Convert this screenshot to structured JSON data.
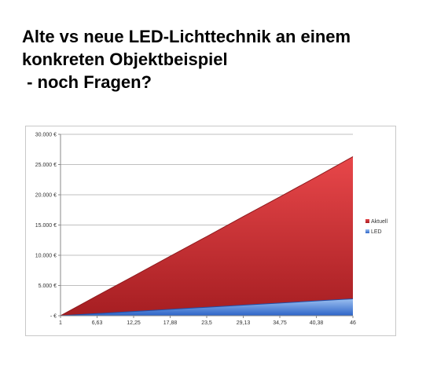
{
  "slide": {
    "title": "Alte vs neue LED-Lichttechnik an einem\nkonkreten Objektbeispiel\n - noch Fragen?"
  },
  "chart_data": {
    "type": "area",
    "x": [
      1,
      6.63,
      12.25,
      17.88,
      23.5,
      29.13,
      34.75,
      40.38,
      46
    ],
    "x_tick_labels": [
      "1",
      "6,63",
      "12,25",
      "17,88",
      "23,5",
      "29,13",
      "34,75",
      "40,38",
      "46"
    ],
    "y_tick_labels": [
      "-  €",
      "5.000 €",
      "10.000 €",
      "15.000 €",
      "20.000 €",
      "25.000 €",
      "30.000 €"
    ],
    "y_ticks": [
      0,
      5000,
      10000,
      15000,
      20000,
      25000,
      30000
    ],
    "ylim": [
      0,
      30000
    ],
    "xlim": [
      1,
      46
    ],
    "series": [
      {
        "name": "Aktuell",
        "color": "#c0392b",
        "values": [
          0,
          3300,
          6550,
          9850,
          13100,
          16400,
          19650,
          22950,
          26300
        ]
      },
      {
        "name": "LED",
        "color": "#4a7fd4",
        "values": [
          0,
          350,
          700,
          1050,
          1400,
          1750,
          2100,
          2450,
          2800
        ]
      }
    ],
    "grid": true,
    "legend_position": "right"
  }
}
